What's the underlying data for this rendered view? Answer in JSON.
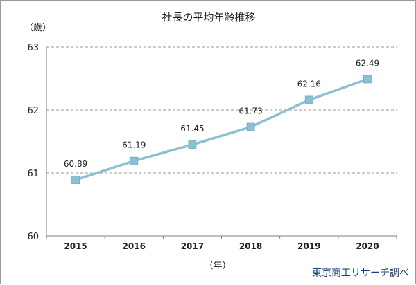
{
  "chart_data": {
    "type": "line",
    "title": "社長の平均年齢推移",
    "ylabel": "（歳）",
    "xlabel": "（年）",
    "categories": [
      "2015",
      "2016",
      "2017",
      "2018",
      "2019",
      "2020"
    ],
    "series": [
      {
        "values": [
          60.89,
          61.19,
          61.45,
          61.73,
          62.16,
          62.49
        ]
      }
    ],
    "data_labels": [
      "60.89",
      "61.19",
      "61.45",
      "61.73",
      "62.16",
      "62.49"
    ],
    "ylim": [
      60,
      63
    ],
    "yticks": [
      "60",
      "61",
      "62",
      "63"
    ],
    "grid": "dashed horizontal",
    "legend": "none",
    "source": "東京商工リサーチ調べ",
    "colors": {
      "line": "#8dbfd2",
      "marker": "#8dbfd2",
      "grid": "#9a9a9a",
      "source_text": "#1f3f7a"
    }
  }
}
